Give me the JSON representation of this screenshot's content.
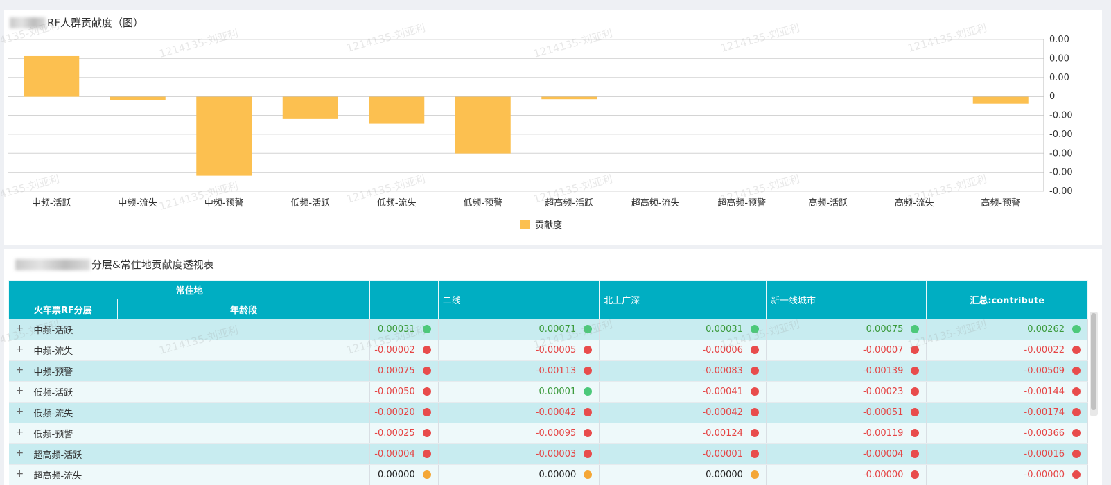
{
  "colors": {
    "bar": "#fcc050",
    "header": "#00aec2",
    "green": "#4cc97a",
    "red": "#e84c4c",
    "orange": "#f4a736"
  },
  "watermark": "1214135-刘亚利",
  "chart_panel": {
    "title": "RF人群贡献度（图）"
  },
  "chart_data": {
    "type": "bar",
    "categories": [
      "中频-活跃",
      "中频-流失",
      "中频-预警",
      "低频-活跃",
      "低频-流失",
      "低频-预警",
      "超高频-活跃",
      "超高频-流失",
      "超高频-预警",
      "高频-活跃",
      "高频-流失",
      "高频-预警"
    ],
    "series": [
      {
        "name": "贡献度",
        "values": [
          0.00262,
          -0.00022,
          -0.00509,
          -0.00144,
          -0.00174,
          -0.00366,
          -0.00016,
          0.0,
          0.0,
          0.0,
          0.0,
          -0.00045
        ]
      }
    ],
    "y_tick_labels": [
      "0.00",
      "0.00",
      "0.00",
      "0",
      "-0.00",
      "-0.00",
      "-0.00",
      "-0.00",
      "-0.00"
    ],
    "ylim": [
      -0.00609,
      0.00369
    ],
    "grid": true,
    "legend": "bottom"
  },
  "table_panel": {
    "title": "分层&常住地贡献度透视表",
    "header": {
      "group_label": "常住地",
      "col_rf": "火车票RF分层",
      "col_age": "年龄段",
      "columns": [
        "",
        "二线",
        "北上广深",
        "新一线城市",
        "汇总:contribute"
      ]
    },
    "rows": [
      {
        "label": "中频-活跃",
        "values": [
          "0.00031",
          "0.00071",
          "0.00031",
          "0.00075",
          "0.00262"
        ],
        "status": [
          "green",
          "green",
          "green",
          "green",
          "green"
        ]
      },
      {
        "label": "中频-流失",
        "values": [
          "-0.00002",
          "-0.00005",
          "-0.00006",
          "-0.00007",
          "-0.00022"
        ],
        "status": [
          "red",
          "red",
          "red",
          "red",
          "red"
        ]
      },
      {
        "label": "中频-预警",
        "values": [
          "-0.00075",
          "-0.00113",
          "-0.00083",
          "-0.00139",
          "-0.00509"
        ],
        "status": [
          "red",
          "red",
          "red",
          "red",
          "red"
        ]
      },
      {
        "label": "低频-活跃",
        "values": [
          "-0.00050",
          "0.00001",
          "-0.00041",
          "-0.00023",
          "-0.00144"
        ],
        "status": [
          "red",
          "green",
          "red",
          "red",
          "red"
        ]
      },
      {
        "label": "低频-流失",
        "values": [
          "-0.00020",
          "-0.00042",
          "-0.00042",
          "-0.00051",
          "-0.00174"
        ],
        "status": [
          "red",
          "red",
          "red",
          "red",
          "red"
        ]
      },
      {
        "label": "低频-预警",
        "values": [
          "-0.00025",
          "-0.00095",
          "-0.00124",
          "-0.00119",
          "-0.00366"
        ],
        "status": [
          "red",
          "red",
          "red",
          "red",
          "red"
        ]
      },
      {
        "label": "超高频-活跃",
        "values": [
          "-0.00004",
          "-0.00003",
          "-0.00001",
          "-0.00004",
          "-0.00016"
        ],
        "status": [
          "red",
          "red",
          "red",
          "red",
          "red"
        ]
      },
      {
        "label": "超高频-流失",
        "values": [
          "0.00000",
          "0.00000",
          "0.00000",
          "-0.00000",
          "-0.00000"
        ],
        "status": [
          "orange",
          "orange",
          "orange",
          "red",
          "red"
        ]
      }
    ]
  }
}
